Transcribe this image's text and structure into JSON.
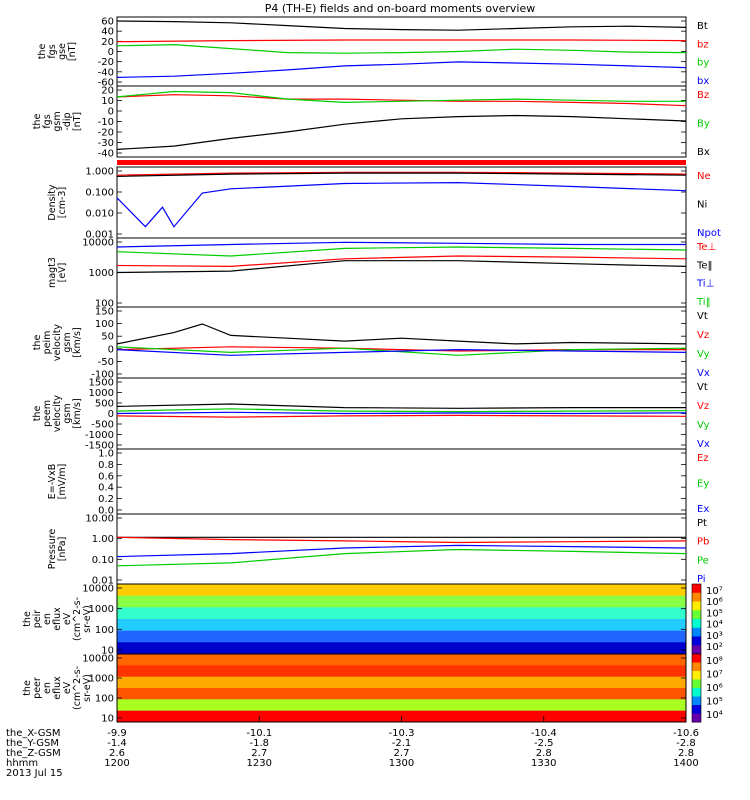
{
  "chart_data": {
    "title": "P4 (TH-E) fields and on-board moments overview",
    "xaxis": {
      "ephemeris": [
        {
          "label": "the_X-GSM",
          "values": [
            "-9.9",
            "-10.1",
            "-10.3",
            "-10.4",
            "-10.6"
          ]
        },
        {
          "label": "the_Y-GSM",
          "values": [
            "-1.4",
            "-1.8",
            "-2.1",
            "-2.5",
            "-2.8"
          ]
        },
        {
          "label": "the_Z-GSM",
          "values": [
            "2.6",
            "2.7",
            "2.7",
            "2.8",
            "2.8"
          ]
        },
        {
          "label": "hhmm",
          "values": [
            "1200",
            "1230",
            "1300",
            "1330",
            "1400"
          ]
        }
      ],
      "date": "2013 Jul 15",
      "range": [
        "1200",
        "1400"
      ]
    },
    "panels": [
      {
        "type": "line",
        "ylabel": [
          "the",
          "fgs",
          "gse",
          "[nT]"
        ],
        "ticks": [
          "60",
          "40",
          "20",
          "0",
          "-20",
          "-40",
          "-60"
        ],
        "ylim": [
          -60,
          60
        ],
        "legend": [
          {
            "name": "Bt",
            "color": "#000000"
          },
          {
            "name": "bz",
            "color": "#ff0000"
          },
          {
            "name": "by",
            "color": "#00cc00"
          },
          {
            "name": "bx",
            "color": "#0000ff"
          }
        ],
        "series": [
          {
            "name": "Bt",
            "color": "#000000",
            "x": [
              0,
              0.1,
              0.2,
              0.3,
              0.4,
              0.5,
              0.6,
              0.7,
              0.8,
              0.9,
              1
            ],
            "values": [
              53,
              52,
              50,
              45,
              40,
              38,
              37,
              40,
              43,
              44,
              42
            ]
          },
          {
            "name": "bz",
            "color": "#ff0000",
            "x": [
              0,
              0.2,
              0.4,
              0.6,
              0.8,
              1
            ],
            "values": [
              17,
              19,
              20,
              20,
              20,
              19
            ]
          },
          {
            "name": "by",
            "color": "#00cc00",
            "x": [
              0,
              0.1,
              0.2,
              0.3,
              0.4,
              0.5,
              0.6,
              0.7,
              0.8,
              0.9,
              1
            ],
            "values": [
              10,
              12,
              5,
              -2,
              -3,
              -2,
              0,
              4,
              2,
              -1,
              -2
            ]
          },
          {
            "name": "bx",
            "color": "#0000ff",
            "x": [
              0,
              0.1,
              0.2,
              0.3,
              0.4,
              0.5,
              0.6,
              0.7,
              0.8,
              0.9,
              1
            ],
            "values": [
              -45,
              -43,
              -38,
              -32,
              -25,
              -22,
              -18,
              -20,
              -22,
              -25,
              -28
            ]
          }
        ]
      },
      {
        "type": "line",
        "ylabel": [
          "the",
          "fgs",
          "gsm",
          "-dip",
          "[nT]"
        ],
        "ticks": [
          "20",
          "10",
          "0",
          "-10",
          "-20",
          "-30",
          "-40"
        ],
        "ylim": [
          -45,
          20
        ],
        "legend": [
          {
            "name": "Bz",
            "color": "#ff0000"
          },
          {
            "name": "By",
            "color": "#00cc00"
          },
          {
            "name": "Bx",
            "color": "#000000"
          }
        ],
        "series": [
          {
            "name": "Bz",
            "color": "#ff0000",
            "x": [
              0,
              0.1,
              0.2,
              0.3,
              0.4,
              0.5,
              0.6,
              0.7,
              0.8,
              0.9,
              1
            ],
            "values": [
              10,
              12,
              11,
              8,
              8,
              7,
              6,
              6,
              5,
              4,
              2
            ]
          },
          {
            "name": "By",
            "color": "#00cc00",
            "x": [
              0,
              0.1,
              0.2,
              0.3,
              0.4,
              0.5,
              0.6,
              0.7,
              0.8,
              0.9,
              1
            ],
            "values": [
              10,
              15,
              14,
              8,
              5,
              6,
              7,
              8,
              7,
              6,
              6
            ]
          },
          {
            "name": "Bx",
            "color": "#000000",
            "x": [
              0,
              0.1,
              0.2,
              0.3,
              0.4,
              0.5,
              0.6,
              0.7,
              0.8,
              0.9,
              1
            ],
            "values": [
              -38,
              -35,
              -28,
              -22,
              -15,
              -10,
              -8,
              -7,
              -8,
              -10,
              -12
            ]
          }
        ]
      },
      {
        "type": "line",
        "log": true,
        "ylabel": [
          "Density",
          "[cm-3]"
        ],
        "ticks": [
          "1.000",
          "0.100",
          "0.010",
          "0.001"
        ],
        "ylim": [
          0.001,
          1
        ],
        "legend": [
          {
            "name": "Ne",
            "color": "#ff0000"
          },
          {
            "name": "Ni",
            "color": "#000000"
          },
          {
            "name": "Npot",
            "color": "#0000ff"
          }
        ],
        "series": [
          {
            "name": "Ne",
            "color": "#ff0000",
            "x": [
              0,
              0.2,
              0.4,
              0.6,
              0.8,
              1
            ],
            "values": [
              0.45,
              0.55,
              0.6,
              0.6,
              0.55,
              0.5
            ]
          },
          {
            "name": "Ni",
            "color": "#000000",
            "x": [
              0,
              0.2,
              0.4,
              0.6,
              0.8,
              1
            ],
            "values": [
              0.4,
              0.5,
              0.55,
              0.55,
              0.5,
              0.45
            ]
          },
          {
            "name": "Npot",
            "color": "#0000ff",
            "x": [
              0,
              0.05,
              0.08,
              0.1,
              0.15,
              0.2,
              0.4,
              0.6,
              0.8,
              1
            ],
            "values": [
              0.05,
              0.003,
              0.02,
              0.003,
              0.08,
              0.12,
              0.2,
              0.22,
              0.15,
              0.1
            ]
          }
        ]
      },
      {
        "type": "line",
        "log": true,
        "ylabel": [
          "magt3",
          "[eV]"
        ],
        "ticks": [
          "10000",
          "1000",
          "100"
        ],
        "ylim": [
          100,
          10000
        ],
        "legend": [
          {
            "name": "Te⊥",
            "color": "#ff0000"
          },
          {
            "name": "Te‖",
            "color": "#000000"
          },
          {
            "name": "Ti⊥",
            "color": "#0000ff"
          },
          {
            "name": "Ti‖",
            "color": "#00cc00"
          }
        ],
        "series": [
          {
            "name": "Ti⊥",
            "color": "#0000ff",
            "x": [
              0,
              0.2,
              0.4,
              0.6,
              0.8,
              1
            ],
            "values": [
              5500,
              6500,
              7500,
              7000,
              6500,
              6500
            ]
          },
          {
            "name": "Ti‖",
            "color": "#00cc00",
            "x": [
              0,
              0.2,
              0.4,
              0.6,
              0.8,
              1
            ],
            "values": [
              4000,
              3000,
              5000,
              5500,
              5000,
              4500
            ]
          },
          {
            "name": "Te⊥",
            "color": "#ff0000",
            "x": [
              0,
              0.2,
              0.4,
              0.6,
              0.8,
              1
            ],
            "values": [
              1600,
              1500,
              2500,
              3000,
              2800,
              2500
            ]
          },
          {
            "name": "Te‖",
            "color": "#000000",
            "x": [
              0,
              0.2,
              0.4,
              0.6,
              0.8,
              1
            ],
            "values": [
              1000,
              1100,
              2200,
              2200,
              1800,
              1500
            ]
          }
        ]
      },
      {
        "type": "line",
        "ylabel": [
          "the",
          "peim",
          "velocity",
          "gsm",
          "[km/s]"
        ],
        "ticks": [
          "150",
          "100",
          "50",
          "0",
          "-50",
          "-100"
        ],
        "ylim": [
          -100,
          150
        ],
        "legend": [
          {
            "name": "Vt",
            "color": "#000000"
          },
          {
            "name": "Vz",
            "color": "#ff0000"
          },
          {
            "name": "Vy",
            "color": "#00cc00"
          },
          {
            "name": "Vx",
            "color": "#0000ff"
          }
        ],
        "series": [
          {
            "name": "Vt",
            "color": "#000000",
            "x": [
              0,
              0.1,
              0.15,
              0.2,
              0.3,
              0.4,
              0.5,
              0.6,
              0.7,
              0.8,
              1
            ],
            "values": [
              20,
              60,
              90,
              50,
              40,
              30,
              40,
              30,
              20,
              25,
              20
            ]
          },
          {
            "name": "Vz",
            "color": "#ff0000",
            "x": [
              0,
              0.2,
              0.4,
              0.6,
              0.8,
              1
            ],
            "values": [
              0,
              10,
              5,
              -5,
              0,
              0
            ]
          },
          {
            "name": "Vy",
            "color": "#00cc00",
            "x": [
              0,
              0.2,
              0.4,
              0.6,
              0.8,
              1
            ],
            "values": [
              10,
              -10,
              5,
              -20,
              0,
              5
            ]
          },
          {
            "name": "Vx",
            "color": "#0000ff",
            "x": [
              0,
              0.2,
              0.4,
              0.6,
              0.8,
              1
            ],
            "values": [
              0,
              -20,
              -10,
              0,
              -5,
              -10
            ]
          }
        ]
      },
      {
        "type": "line",
        "ylabel": [
          "the",
          "peem",
          "velocity",
          "gsm",
          "[km/s]"
        ],
        "ticks": [
          "1500",
          "1000",
          "500",
          "0",
          "-500",
          "-1000",
          "-1500"
        ],
        "ylim": [
          -1500,
          1500
        ],
        "legend": [
          {
            "name": "Vt",
            "color": "#000000"
          },
          {
            "name": "Vz",
            "color": "#ff0000"
          },
          {
            "name": "Vy",
            "color": "#00cc00"
          },
          {
            "name": "Vx",
            "color": "#0000ff"
          }
        ],
        "series": [
          {
            "name": "Vt",
            "color": "#000000",
            "x": [
              0,
              0.2,
              0.4,
              0.6,
              0.8,
              1
            ],
            "values": [
              300,
              400,
              250,
              220,
              250,
              250
            ]
          },
          {
            "name": "Vz",
            "color": "#ff0000",
            "x": [
              0,
              0.2,
              0.4,
              0.6,
              0.8,
              1
            ],
            "values": [
              -100,
              -150,
              -100,
              -80,
              -100,
              -120
            ]
          },
          {
            "name": "Vy",
            "color": "#00cc00",
            "x": [
              0,
              0.2,
              0.4,
              0.6,
              0.8,
              1
            ],
            "values": [
              100,
              200,
              100,
              80,
              100,
              120
            ]
          },
          {
            "name": "Vx",
            "color": "#0000ff",
            "x": [
              0,
              0.2,
              0.4,
              0.6,
              0.8,
              1
            ],
            "values": [
              0,
              50,
              0,
              20,
              0,
              30
            ]
          }
        ]
      },
      {
        "type": "line",
        "ylabel": [
          "E=-VxB",
          "[mV/m]"
        ],
        "ticks": [
          "1.0",
          "0.8",
          "0.6",
          "0.4",
          "0.2",
          "0.0"
        ],
        "ylim": [
          0,
          1
        ],
        "legend": [
          {
            "name": "Ez",
            "color": "#ff0000"
          },
          {
            "name": "Ey",
            "color": "#00cc00"
          },
          {
            "name": "Ex",
            "color": "#0000ff"
          }
        ],
        "series": []
      },
      {
        "type": "line",
        "log": true,
        "ylabel": [
          "Pressure",
          "[nPa]"
        ],
        "ticks": [
          "10.00",
          "1.00",
          "0.10",
          "0.01"
        ],
        "ylim": [
          0.01,
          10
        ],
        "legend": [
          {
            "name": "Pt",
            "color": "#000000"
          },
          {
            "name": "Pb",
            "color": "#ff0000"
          },
          {
            "name": "Pe",
            "color": "#00cc00"
          },
          {
            "name": "Pi",
            "color": "#0000ff"
          }
        ],
        "series": [
          {
            "name": "Pt",
            "color": "#000000",
            "x": [
              0,
              0.2,
              0.4,
              0.6,
              0.8,
              1
            ],
            "values": [
              1.0,
              1.0,
              1.0,
              1.0,
              1.0,
              1.0
            ]
          },
          {
            "name": "Pb",
            "color": "#ff0000",
            "x": [
              0,
              0.2,
              0.4,
              0.6,
              0.8,
              1
            ],
            "values": [
              1.0,
              0.8,
              0.7,
              0.6,
              0.65,
              0.7
            ]
          },
          {
            "name": "Pi",
            "color": "#0000ff",
            "x": [
              0,
              0.2,
              0.4,
              0.6,
              0.8,
              1
            ],
            "values": [
              0.15,
              0.2,
              0.35,
              0.45,
              0.4,
              0.35
            ]
          },
          {
            "name": "Pe",
            "color": "#00cc00",
            "x": [
              0,
              0.2,
              0.4,
              0.6,
              0.8,
              1
            ],
            "values": [
              0.06,
              0.08,
              0.2,
              0.3,
              0.25,
              0.2
            ]
          }
        ]
      },
      {
        "type": "heatmap",
        "ylabel": [
          "the",
          "peir",
          "en",
          "eflux",
          "eV",
          "(cm^2-s-",
          "sr-eV)"
        ],
        "ticks": [
          "10000",
          "1000",
          "100",
          "10"
        ],
        "colorbar": [
          "10⁷",
          "10⁶",
          "10⁵",
          "10⁴",
          "10³",
          "10²"
        ]
      },
      {
        "type": "heatmap",
        "ylabel": [
          "the",
          "peer",
          "en",
          "eflux",
          "eV",
          "(cm^2-s-",
          "sr-eV)"
        ],
        "ticks": [
          "10000",
          "1000",
          "100",
          "10"
        ],
        "colorbar": [
          "10⁸",
          "10⁷",
          "10⁶",
          "10⁵",
          "10⁴"
        ]
      }
    ]
  }
}
